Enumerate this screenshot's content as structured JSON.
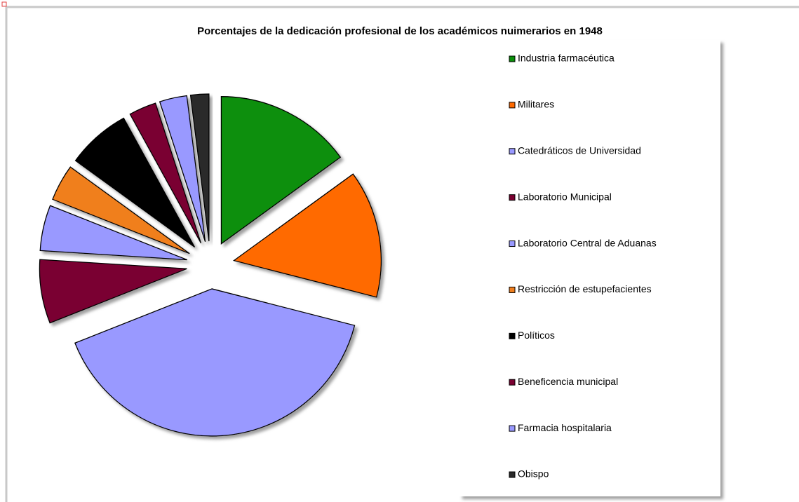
{
  "chart_data": {
    "type": "pie",
    "title": "Porcentajes de la dedicación profesional de los académicos nuimerarios en 1948",
    "categories": [
      "Industria farmacéutica",
      "Militares",
      "Catedráticos de Universidad",
      "Laboratorio Municipal",
      "Laboratorio Central de Aduanas",
      "Restricción de estupefacientes",
      "Políticos",
      "Beneficencia municipal",
      "Farmacia hospitalaria",
      "Obispo"
    ],
    "values": [
      15,
      14,
      40,
      7,
      5,
      4,
      7,
      3,
      3,
      2
    ],
    "colors": [
      "#0a8f0a",
      "#ff6a00",
      "#9999ff",
      "#7a0030",
      "#9999ff",
      "#f07f1e",
      "#000000",
      "#7a0030",
      "#9999ff",
      "#2a2a2a"
    ],
    "legend": "right"
  }
}
